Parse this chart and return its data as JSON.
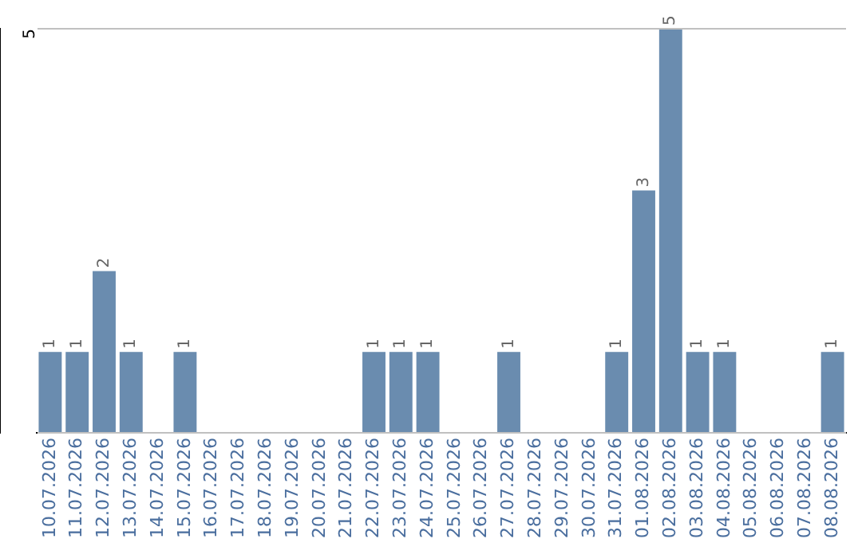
{
  "chart_data": {
    "type": "bar",
    "categories": [
      "10.07.2026",
      "11.07.2026",
      "12.07.2026",
      "13.07.2026",
      "14.07.2026",
      "15.07.2026",
      "16.07.2026",
      "17.07.2026",
      "18.07.2026",
      "19.07.2026",
      "20.07.2026",
      "21.07.2026",
      "22.07.2026",
      "23.07.2026",
      "24.07.2026",
      "25.07.2026",
      "26.07.2026",
      "27.07.2026",
      "28.07.2026",
      "29.07.2026",
      "30.07.2026",
      "31.07.2026",
      "01.08.2026",
      "02.08.2026",
      "03.08.2026",
      "04.08.2026",
      "05.08.2026",
      "06.08.2026",
      "07.08.2026",
      "08.08.2026"
    ],
    "values": [
      1,
      1,
      2,
      1,
      0,
      1,
      0,
      0,
      0,
      0,
      0,
      0,
      1,
      1,
      1,
      0,
      0,
      1,
      0,
      0,
      0,
      1,
      3,
      5,
      1,
      1,
      0,
      0,
      0,
      1
    ],
    "value_labels": [
      "1",
      "1",
      "2",
      "1",
      null,
      "1",
      null,
      null,
      null,
      null,
      null,
      null,
      "1",
      "1",
      "1",
      null,
      null,
      "1",
      null,
      null,
      null,
      "1",
      "3",
      "5",
      "1",
      "1",
      null,
      null,
      null,
      "1"
    ],
    "color": "#6a8caf",
    "ylim": [
      0,
      5
    ],
    "yticks": [
      {
        "value": 0,
        "label": null
      },
      5
    ],
    "grid": "y",
    "legend": false
  }
}
